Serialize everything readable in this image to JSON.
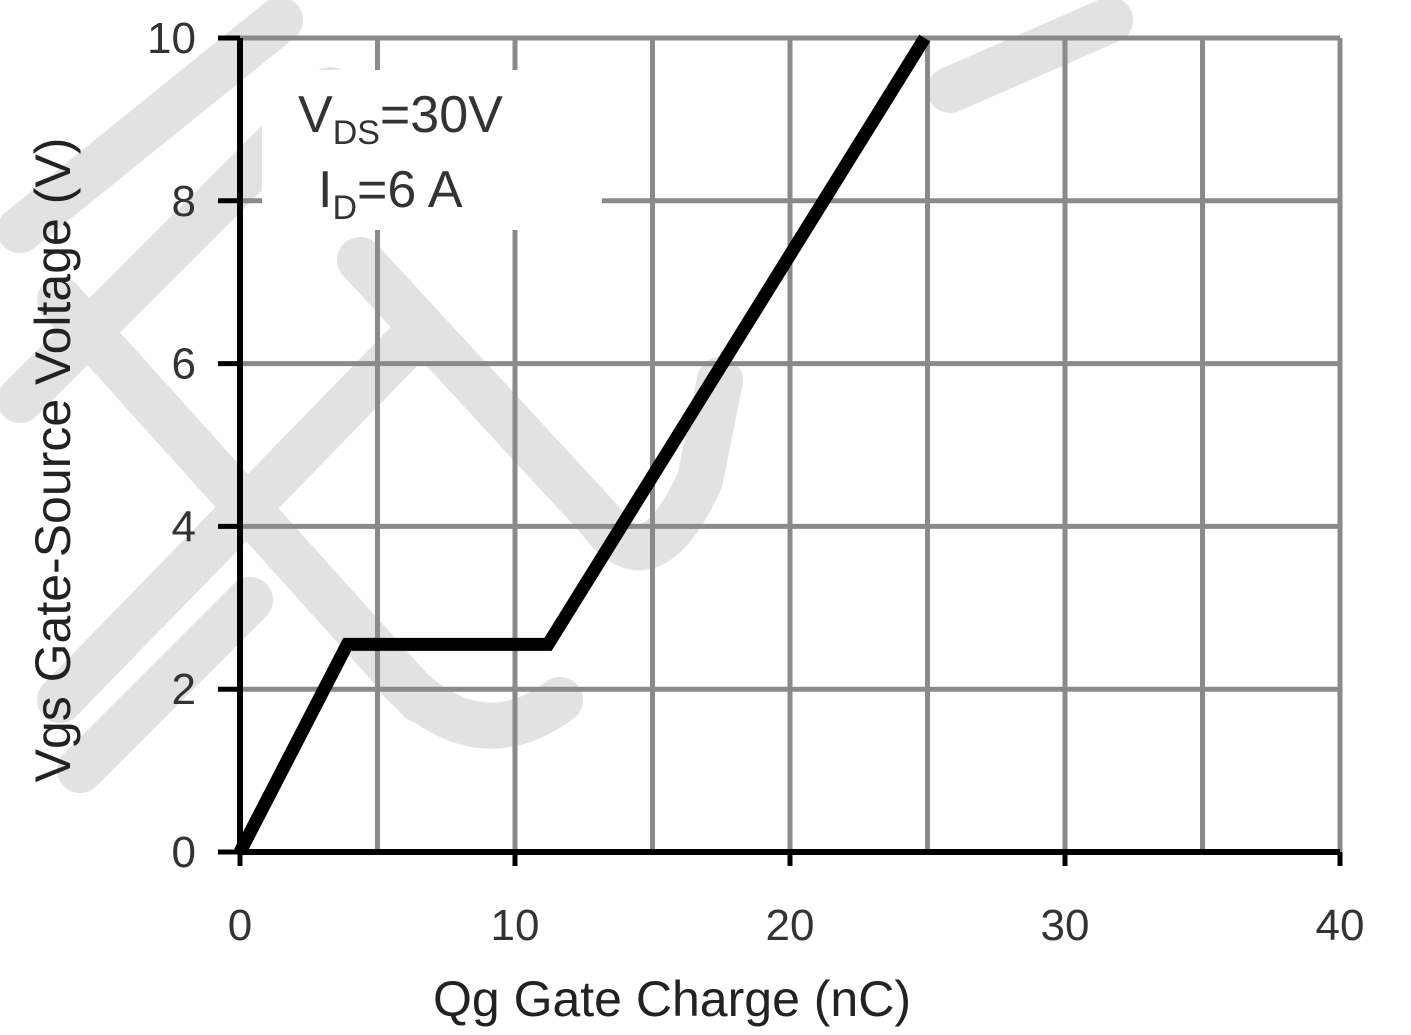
{
  "chart_data": {
    "type": "line",
    "title": "",
    "xlabel": "Qg Gate Charge (nC)",
    "ylabel": "Vgs Gate-Source Voltage (V)",
    "xlim": [
      0,
      40
    ],
    "ylim": [
      0,
      10
    ],
    "x_ticks": [
      "0",
      "10",
      "20",
      "30",
      "40"
    ],
    "y_ticks": [
      "0",
      "2",
      "4",
      "6",
      "8",
      "10"
    ],
    "grid": true,
    "x_grid_step": 5,
    "y_grid_step": 2,
    "series": [
      {
        "x": [
          0,
          3.9,
          11.2,
          24.9
        ],
        "y": [
          0,
          2.55,
          2.55,
          10
        ]
      }
    ],
    "annotations": [
      {
        "main": "V",
        "sub": "DS",
        "rest": "=30V"
      },
      {
        "main": "I",
        "sub": "D",
        "rest": "=6 A"
      }
    ],
    "colors": {
      "line": "#000000",
      "grid": "#8a8a8a",
      "axis": "#000000",
      "watermark": "#dcdcdc"
    }
  }
}
